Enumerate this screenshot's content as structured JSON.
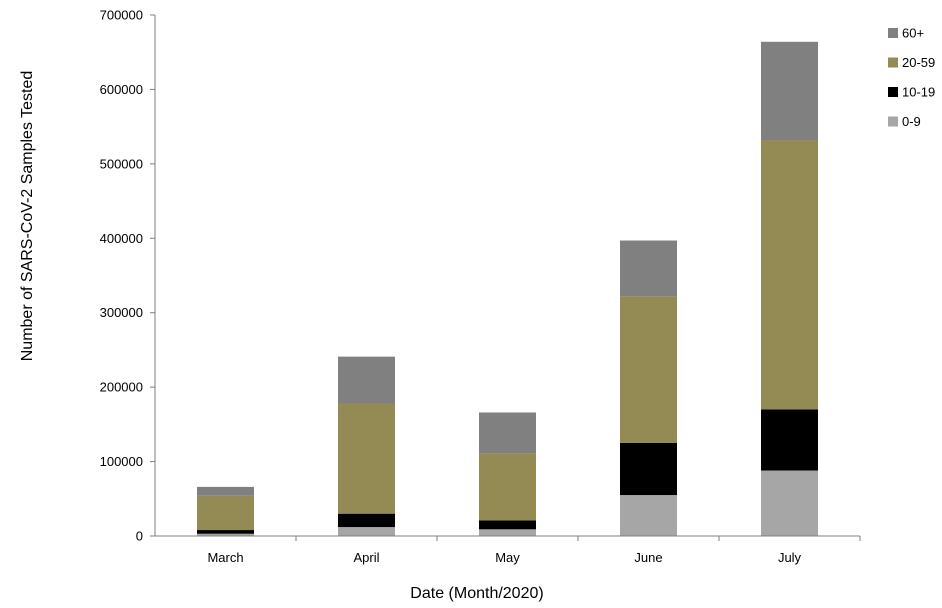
{
  "chart_data": {
    "type": "bar",
    "stacked": true,
    "title": "",
    "xlabel": "Date (Month/2020)",
    "ylabel": "Number of SARS-CoV-2 Samples Tested",
    "ylim": [
      0,
      700000
    ],
    "yticks": [
      0,
      100000,
      200000,
      300000,
      400000,
      500000,
      600000,
      700000
    ],
    "grid": false,
    "legend_position": "top-right",
    "categories": [
      "March",
      "April",
      "May",
      "June",
      "July"
    ],
    "series": [
      {
        "name": "0-9",
        "color": "#a6a6a6",
        "values": [
          3000,
          12000,
          9000,
          55000,
          88000
        ]
      },
      {
        "name": "10-19",
        "color": "#000000",
        "values": [
          5000,
          18000,
          12000,
          70000,
          82000
        ]
      },
      {
        "name": "20-59",
        "color": "#948a54",
        "values": [
          46000,
          148000,
          90000,
          197000,
          362000
        ]
      },
      {
        "name": "60+",
        "color": "#808080",
        "values": [
          12000,
          63000,
          55000,
          75000,
          132000
        ]
      }
    ]
  }
}
